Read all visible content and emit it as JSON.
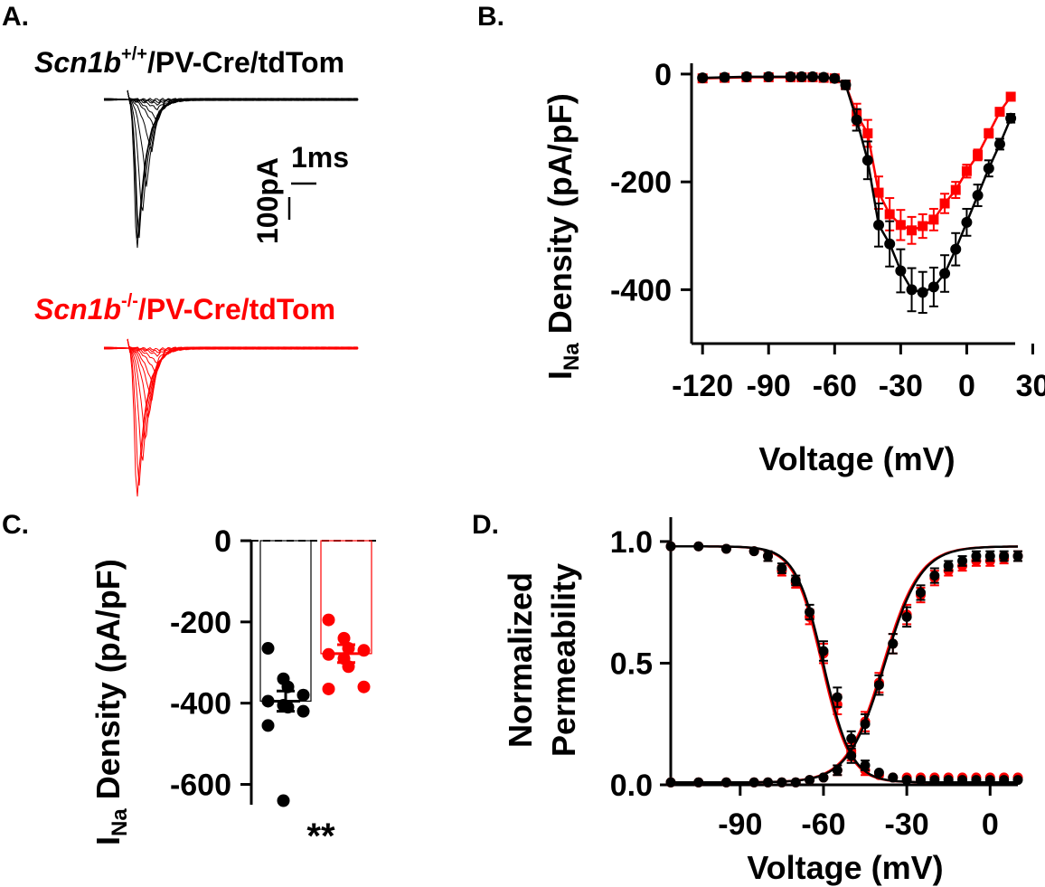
{
  "colors": {
    "wt": "#000000",
    "ko": "#ff0000"
  },
  "panels": {
    "a": {
      "label": "A.",
      "wt_gene": "Scn1b",
      "wt_sup": "+/+",
      "wt_rest": "/PV-Cre/tdTom",
      "ko_gene": "Scn1b",
      "ko_sup": "-/-",
      "ko_rest": "/PV-Cre/tdTom",
      "scale_time": "1ms",
      "scale_current": "100pA",
      "wt_trace_peaks": [
        0,
        -5,
        -10,
        -20,
        -40,
        -60,
        -110,
        -180,
        -250,
        -300,
        -310,
        -330
      ],
      "ko_trace_peaks": [
        -3,
        -8,
        -15,
        -30,
        -50,
        -80,
        -110,
        -150,
        -200,
        -250,
        -300,
        -330
      ]
    },
    "b": {
      "label": "B."
    },
    "c": {
      "label": "C."
    },
    "d": {
      "label": "D."
    }
  },
  "chart_data": [
    {
      "panel": "B",
      "type": "line",
      "xlabel": "Voltage (mV)",
      "ylabel_main": "I",
      "ylabel_sub": "Na",
      "ylabel_rest": " Density (pA/pF)",
      "xlim": [
        -125,
        22
      ],
      "ylim": [
        -500,
        20
      ],
      "xticks": [
        -120,
        -90,
        -60,
        -30,
        0,
        30
      ],
      "xtick_labels": [
        "-120",
        "-90",
        "-60",
        "-30",
        "0",
        "30"
      ],
      "yticks": [
        0,
        -200,
        -400
      ],
      "ytick_labels": [
        "0",
        "-200",
        "-400"
      ],
      "series": [
        {
          "group": "ko",
          "marker": "square",
          "x": [
            -120,
            -110,
            -100,
            -90,
            -80,
            -75,
            -70,
            -65,
            -60,
            -55,
            -50,
            -45,
            -40,
            -35,
            -30,
            -25,
            -20,
            -15,
            -10,
            -5,
            0,
            5,
            10,
            15,
            20
          ],
          "y": [
            -8,
            -7,
            -6,
            -6,
            -6,
            -6,
            -6,
            -7,
            -8,
            -20,
            -75,
            -110,
            -220,
            -260,
            -280,
            -290,
            -282,
            -270,
            -240,
            -215,
            -180,
            -150,
            -110,
            -70,
            -42
          ],
          "err": [
            2,
            2,
            2,
            2,
            2,
            2,
            2,
            2,
            3,
            8,
            20,
            25,
            30,
            30,
            28,
            25,
            22,
            20,
            18,
            15,
            12,
            10,
            8,
            6,
            5
          ]
        },
        {
          "group": "wt",
          "marker": "circle",
          "x": [
            -120,
            -110,
            -100,
            -90,
            -80,
            -75,
            -70,
            -65,
            -60,
            -55,
            -50,
            -45,
            -40,
            -35,
            -30,
            -25,
            -20,
            -15,
            -10,
            -5,
            0,
            5,
            10,
            15,
            20
          ],
          "y": [
            -7,
            -6,
            -5,
            -5,
            -5,
            -5,
            -5,
            -6,
            -8,
            -20,
            -85,
            -160,
            -280,
            -315,
            -365,
            -400,
            -405,
            -395,
            -370,
            -325,
            -275,
            -225,
            -175,
            -130,
            -82
          ],
          "err": [
            2,
            2,
            2,
            2,
            2,
            2,
            2,
            2,
            3,
            8,
            20,
            35,
            40,
            42,
            40,
            40,
            38,
            36,
            34,
            30,
            25,
            20,
            15,
            10,
            8
          ]
        }
      ]
    },
    {
      "panel": "C",
      "type": "bar",
      "ylabel_main": "I",
      "ylabel_sub": "Na",
      "ylabel_rest": " Density (pA/pF)",
      "ylim": [
        -650,
        0
      ],
      "yticks": [
        0,
        -200,
        -400,
        -600
      ],
      "ytick_labels": [
        "0",
        "-200",
        "-400",
        "-600"
      ],
      "annotation": "**",
      "bars": [
        {
          "group": "wt",
          "mean": -395,
          "sem": 25,
          "points": [
            -265,
            -340,
            -360,
            -380,
            -395,
            -405,
            -410,
            -420,
            -455,
            -640
          ]
        },
        {
          "group": "ko",
          "mean": -278,
          "sem": 22,
          "points": [
            -195,
            -240,
            -265,
            -270,
            -280,
            -290,
            -310,
            -360,
            -365
          ]
        }
      ]
    },
    {
      "panel": "D",
      "type": "line",
      "xlabel": "Voltage (mV)",
      "ylabel_line1": "Normalized",
      "ylabel_line2": "Permeability",
      "xlim": [
        -115,
        10
      ],
      "ylim": [
        0,
        1.1
      ],
      "xticks": [
        -90,
        -60,
        -30,
        0
      ],
      "xtick_labels": [
        "-90",
        "-60",
        "-30",
        "0"
      ],
      "yticks": [
        0,
        0.5,
        1
      ],
      "ytick_labels": [
        "0.0",
        "0.5",
        "1.0"
      ],
      "series": [
        {
          "group": "wt",
          "kind": "inactivation",
          "fit": {
            "v_half": -60,
            "k": 5
          },
          "x": [
            -115,
            -105,
            -95,
            -85,
            -80,
            -75,
            -70,
            -65,
            -60,
            -55,
            -50,
            -45,
            -40,
            -35,
            -30,
            -25,
            -20,
            -15,
            -10,
            -5,
            0,
            5,
            10
          ],
          "y": [
            0.98,
            0.98,
            0.97,
            0.96,
            0.94,
            0.89,
            0.84,
            0.71,
            0.55,
            0.36,
            0.19,
            0.08,
            0.05,
            0.03,
            0.02,
            0.02,
            0.02,
            0.02,
            0.02,
            0.02,
            0.02,
            0.02,
            0.02
          ],
          "err": [
            0.01,
            0.01,
            0.01,
            0.01,
            0.02,
            0.02,
            0.02,
            0.03,
            0.04,
            0.04,
            0.03,
            0.02,
            0.01,
            0.01,
            0.01,
            0.01,
            0.01,
            0.01,
            0.01,
            0.01,
            0.01,
            0.01,
            0.01
          ]
        },
        {
          "group": "ko",
          "kind": "inactivation",
          "fit": {
            "v_half": -60.5,
            "k": 5
          },
          "x": [
            -115,
            -105,
            -95,
            -85,
            -80,
            -75,
            -70,
            -65,
            -60,
            -55,
            -50,
            -45,
            -40,
            -35,
            -30,
            -25,
            -20,
            -15,
            -10,
            -5,
            0,
            5,
            10
          ],
          "y": [
            0.98,
            0.98,
            0.97,
            0.96,
            0.94,
            0.88,
            0.83,
            0.69,
            0.54,
            0.33,
            0.14,
            0.06,
            0.04,
            0.03,
            0.03,
            0.03,
            0.03,
            0.03,
            0.03,
            0.03,
            0.03,
            0.03,
            0.03
          ],
          "err": [
            0.01,
            0.01,
            0.01,
            0.01,
            0.02,
            0.02,
            0.02,
            0.03,
            0.04,
            0.04,
            0.03,
            0.02,
            0.01,
            0.01,
            0.01,
            0.01,
            0.01,
            0.01,
            0.01,
            0.01,
            0.01,
            0.01,
            0.01
          ]
        },
        {
          "group": "wt",
          "kind": "activation",
          "fit": {
            "v_half": -38,
            "k": -6.5
          },
          "x": [
            -115,
            -105,
            -95,
            -85,
            -80,
            -75,
            -70,
            -65,
            -60,
            -55,
            -50,
            -45,
            -40,
            -35,
            -30,
            -25,
            -20,
            -15,
            -10,
            -5,
            0,
            5,
            10
          ],
          "y": [
            0.01,
            0.01,
            0.01,
            0.01,
            0.01,
            0.01,
            0.01,
            0.02,
            0.03,
            0.06,
            0.12,
            0.25,
            0.41,
            0.58,
            0.69,
            0.79,
            0.86,
            0.9,
            0.92,
            0.94,
            0.94,
            0.94,
            0.94
          ],
          "err": [
            0.01,
            0.01,
            0.01,
            0.01,
            0.01,
            0.01,
            0.01,
            0.01,
            0.01,
            0.02,
            0.03,
            0.04,
            0.04,
            0.04,
            0.04,
            0.03,
            0.03,
            0.02,
            0.02,
            0.02,
            0.02,
            0.02,
            0.02
          ]
        },
        {
          "group": "ko",
          "kind": "activation",
          "fit": {
            "v_half": -38.5,
            "k": -6.5
          },
          "x": [
            -115,
            -105,
            -95,
            -85,
            -80,
            -75,
            -70,
            -65,
            -60,
            -55,
            -50,
            -45,
            -40,
            -35,
            -30,
            -25,
            -20,
            -15,
            -10,
            -5,
            0,
            5,
            10
          ],
          "y": [
            0.01,
            0.01,
            0.01,
            0.01,
            0.01,
            0.01,
            0.01,
            0.02,
            0.03,
            0.06,
            0.13,
            0.26,
            0.42,
            0.58,
            0.7,
            0.78,
            0.85,
            0.88,
            0.9,
            0.92,
            0.92,
            0.93,
            0.94
          ],
          "err": [
            0.01,
            0.01,
            0.01,
            0.01,
            0.01,
            0.01,
            0.01,
            0.01,
            0.01,
            0.02,
            0.03,
            0.04,
            0.04,
            0.04,
            0.04,
            0.03,
            0.03,
            0.02,
            0.02,
            0.02,
            0.02,
            0.02,
            0.02
          ]
        }
      ]
    }
  ]
}
